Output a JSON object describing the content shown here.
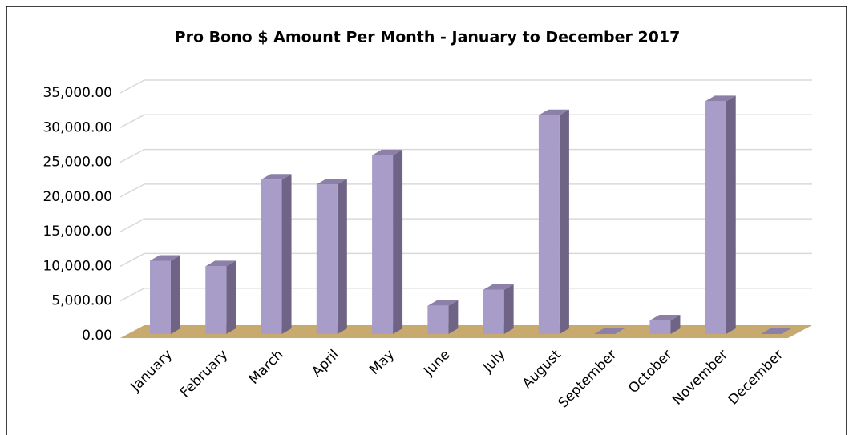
{
  "chart_data": {
    "type": "bar3d",
    "title": "Pro Bono $ Amount Per Month - January to December 2017",
    "categories": [
      "January",
      "February",
      "March",
      "April",
      "May",
      "June",
      "July",
      "August",
      "September",
      "October",
      "November",
      "December"
    ],
    "values": [
      10800,
      10000,
      22500,
      21800,
      26000,
      4300,
      6600,
      31800,
      0,
      2200,
      33800,
      0
    ],
    "color": "#a89cc8",
    "side_color": "#6f6485",
    "top_color": "#8c80a8",
    "floor_color": "#c8a96e",
    "ylim": [
      0,
      35000
    ],
    "yticks": [
      {
        "value": 0,
        "label": "0.00"
      },
      {
        "value": 5000,
        "label": "5,000.00"
      },
      {
        "value": 10000,
        "label": "10,000.00"
      },
      {
        "value": 15000,
        "label": "15,000.00"
      },
      {
        "value": 20000,
        "label": "20,000.00"
      },
      {
        "value": 25000,
        "label": "25,000.00"
      },
      {
        "value": 30000,
        "label": "30,000.00"
      },
      {
        "value": 35000,
        "label": "35,000.00"
      }
    ],
    "grid": true
  }
}
